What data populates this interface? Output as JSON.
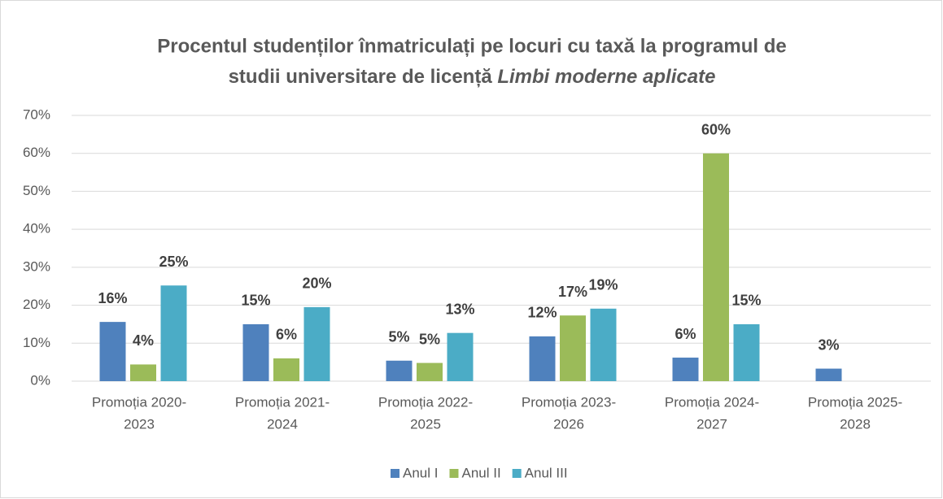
{
  "chart_data": {
    "type": "bar",
    "title": [
      "Procentul studenților înmatriculați pe locuri cu taxă la programul de",
      "studii universitare de licență"
    ],
    "title_italic": "Limbi moderne aplicate",
    "categories": [
      [
        "Promoția 2020-",
        "2023"
      ],
      [
        "Promoția 2021-",
        "2024"
      ],
      [
        "Promoția 2022-",
        "2025"
      ],
      [
        "Promoția 2023-",
        "2026"
      ],
      [
        "Promoția 2024-",
        "2027"
      ],
      [
        "Promoția 2025-",
        "2028"
      ]
    ],
    "series": [
      {
        "name": "Anul I",
        "color": "#4f81bd",
        "values": [
          15.6,
          15,
          5.4,
          11.8,
          6.2,
          3.3
        ],
        "value_labels": [
          "16%",
          "15%",
          "5%",
          "12%",
          "6%",
          "3%"
        ]
      },
      {
        "name": "Anul II",
        "color": "#9bbb59",
        "values": [
          4.4,
          6,
          4.8,
          17.3,
          60,
          null
        ],
        "value_labels": [
          "4%",
          "6%",
          "5%",
          "17%",
          "60%",
          null
        ]
      },
      {
        "name": "Anul III",
        "color": "#4bacc6",
        "values": [
          25.2,
          19.5,
          12.7,
          19.1,
          15,
          null
        ],
        "value_labels": [
          "25%",
          "20%",
          "13%",
          "19%",
          "15%",
          null
        ]
      }
    ],
    "ylim": [
      0,
      70
    ],
    "yticks": [
      {
        "value": 0,
        "label": "0%"
      },
      {
        "value": 10,
        "label": "10%"
      },
      {
        "value": 20,
        "label": "20%"
      },
      {
        "value": 30,
        "label": "30%"
      },
      {
        "value": 40,
        "label": "40%"
      },
      {
        "value": 50,
        "label": "50%"
      },
      {
        "value": 60,
        "label": "60%"
      },
      {
        "value": 70,
        "label": "70%"
      }
    ],
    "grid": true,
    "legend": "bottom"
  }
}
